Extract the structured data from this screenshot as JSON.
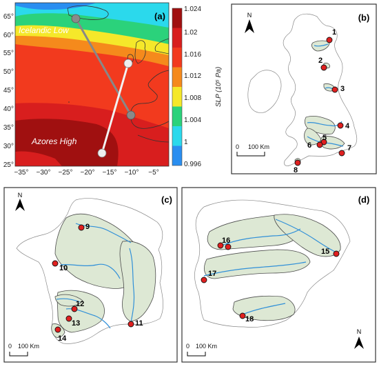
{
  "panels": {
    "a": {
      "label": "(a)",
      "icelandic_low_label": "Icelandic Low",
      "azores_high_label": "Azores High",
      "x_ticks": [
        "−35°",
        "−30°",
        "−25°",
        "−20°",
        "−15°",
        "−10°",
        "−5°"
      ],
      "y_ticks": [
        "65°",
        "60°",
        "55°",
        "50°",
        "45°",
        "40°",
        "35°",
        "30°",
        "25°"
      ],
      "colorbar": {
        "title": "SLP (10⁵ Pa)",
        "ticks": [
          "1.024",
          "1.02",
          "1.016",
          "1.012",
          "1.008",
          "1.004",
          "1",
          "0.996"
        ],
        "colors": [
          "#a01010",
          "#d81e1e",
          "#f23a1e",
          "#f58a1c",
          "#f5e82a",
          "#2bd27b",
          "#2bd9ec",
          "#2a8ef0"
        ]
      }
    },
    "b": {
      "label": "(b)",
      "north_label": "N",
      "scale_zero": "0",
      "scale_label": "100 Km",
      "sites": [
        "1",
        "2",
        "3",
        "4",
        "5",
        "6",
        "7",
        "8"
      ]
    },
    "c": {
      "label": "(c)",
      "north_label": "N",
      "scale_zero": "0",
      "scale_label": "100 Km",
      "sites": [
        "9",
        "10",
        "11",
        "12",
        "13",
        "14"
      ]
    },
    "d": {
      "label": "(d)",
      "north_label": "N",
      "scale_zero": "0",
      "scale_label": "100 Km",
      "sites": [
        "15",
        "16",
        "17",
        "18"
      ]
    }
  }
}
